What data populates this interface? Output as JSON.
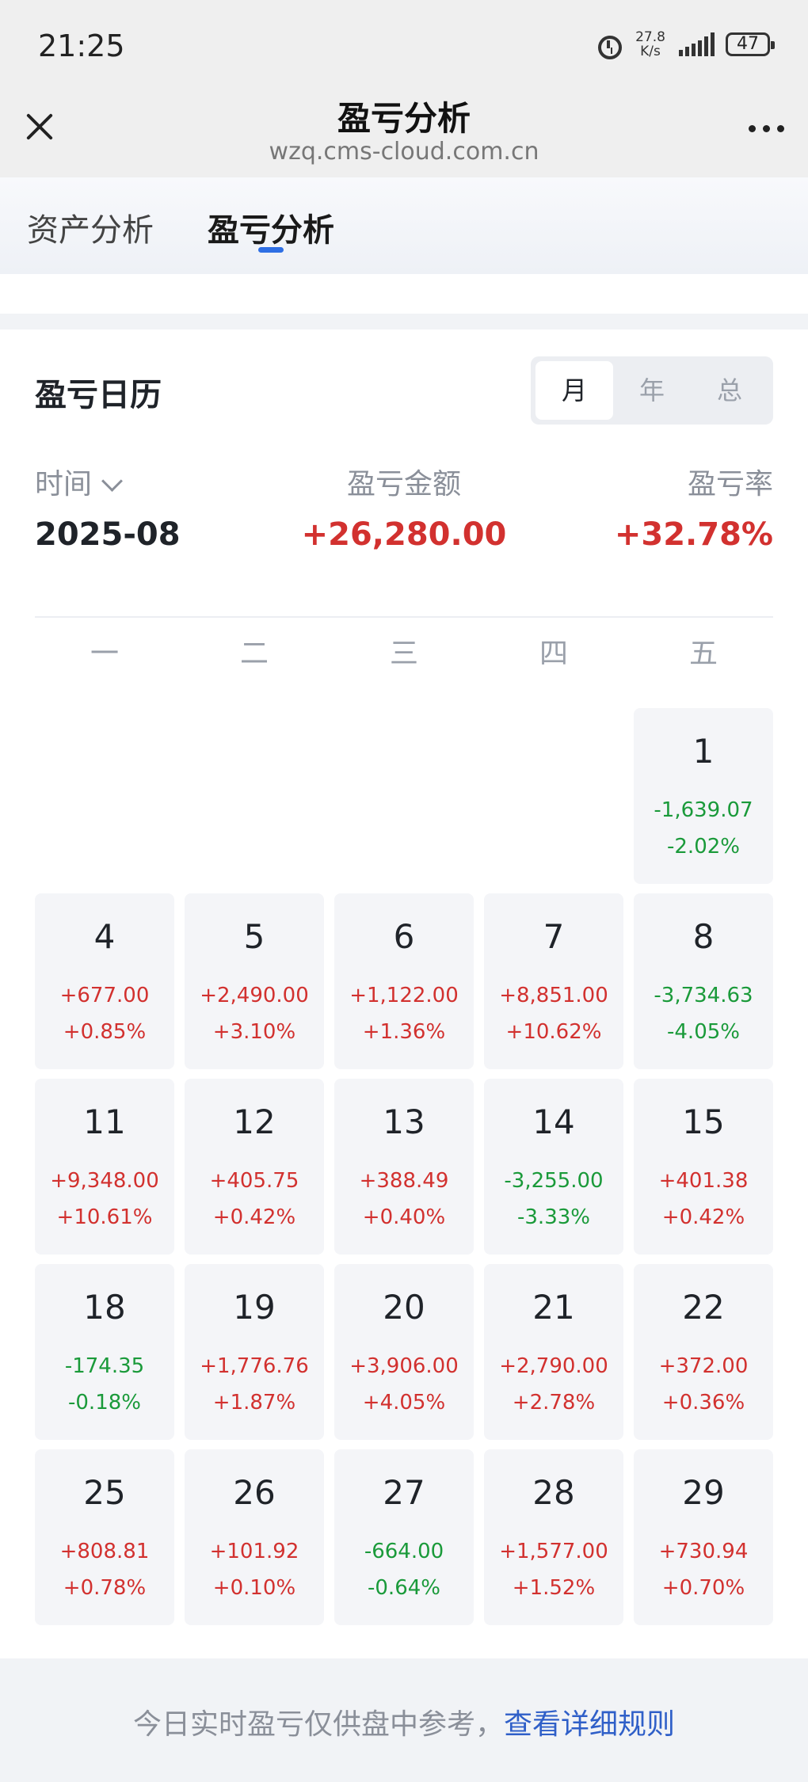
{
  "status": {
    "time": "21:25",
    "speed_top": "27.8",
    "speed_bottom": "K/s",
    "battery": "47"
  },
  "nav": {
    "title": "盈亏分析",
    "url": "wzq.cms-cloud.com.cn"
  },
  "tabs": [
    {
      "label": "资产分析"
    },
    {
      "label": "盈亏分析",
      "active": true
    }
  ],
  "calendar": {
    "title": "盈亏日历",
    "periods": [
      "月",
      "年",
      "总"
    ],
    "selected_period": "月",
    "summary": {
      "time_label": "时间",
      "time_value": "2025-08",
      "amount_label": "盈亏金额",
      "amount_value": "+26,280.00",
      "rate_label": "盈亏率",
      "rate_value": "+32.78%"
    },
    "weekdays": [
      "一",
      "二",
      "三",
      "四",
      "五"
    ],
    "days": [
      {
        "day": "1",
        "amount": "-1,639.07",
        "rate": "-2.02%",
        "col": 4,
        "row": 0
      },
      {
        "day": "4",
        "amount": "+677.00",
        "rate": "+0.85%",
        "col": 0,
        "row": 1
      },
      {
        "day": "5",
        "amount": "+2,490.00",
        "rate": "+3.10%",
        "col": 1,
        "row": 1
      },
      {
        "day": "6",
        "amount": "+1,122.00",
        "rate": "+1.36%",
        "col": 2,
        "row": 1
      },
      {
        "day": "7",
        "amount": "+8,851.00",
        "rate": "+10.62%",
        "col": 3,
        "row": 1
      },
      {
        "day": "8",
        "amount": "-3,734.63",
        "rate": "-4.05%",
        "col": 4,
        "row": 1
      },
      {
        "day": "11",
        "amount": "+9,348.00",
        "rate": "+10.61%",
        "col": 0,
        "row": 2
      },
      {
        "day": "12",
        "amount": "+405.75",
        "rate": "+0.42%",
        "col": 1,
        "row": 2
      },
      {
        "day": "13",
        "amount": "+388.49",
        "rate": "+0.40%",
        "col": 2,
        "row": 2
      },
      {
        "day": "14",
        "amount": "-3,255.00",
        "rate": "-3.33%",
        "col": 3,
        "row": 2
      },
      {
        "day": "15",
        "amount": "+401.38",
        "rate": "+0.42%",
        "col": 4,
        "row": 2
      },
      {
        "day": "18",
        "amount": "-174.35",
        "rate": "-0.18%",
        "col": 0,
        "row": 3
      },
      {
        "day": "19",
        "amount": "+1,776.76",
        "rate": "+1.87%",
        "col": 1,
        "row": 3
      },
      {
        "day": "20",
        "amount": "+3,906.00",
        "rate": "+4.05%",
        "col": 2,
        "row": 3
      },
      {
        "day": "21",
        "amount": "+2,790.00",
        "rate": "+2.78%",
        "col": 3,
        "row": 3
      },
      {
        "day": "22",
        "amount": "+372.00",
        "rate": "+0.36%",
        "col": 4,
        "row": 3
      },
      {
        "day": "25",
        "amount": "+808.81",
        "rate": "+0.78%",
        "col": 0,
        "row": 4
      },
      {
        "day": "26",
        "amount": "+101.92",
        "rate": "+0.10%",
        "col": 1,
        "row": 4
      },
      {
        "day": "27",
        "amount": "-664.00",
        "rate": "-0.64%",
        "col": 2,
        "row": 4
      },
      {
        "day": "28",
        "amount": "+1,577.00",
        "rate": "+1.52%",
        "col": 3,
        "row": 4
      },
      {
        "day": "29",
        "amount": "+730.94",
        "rate": "+0.70%",
        "col": 4,
        "row": 4
      }
    ]
  },
  "footer": {
    "text": "今日实时盈亏仅供盘中参考，",
    "link": "查看详细规则"
  },
  "colors": {
    "profit": "#d2312f",
    "loss": "#1a9a3a",
    "accent": "#2f6fe4"
  }
}
